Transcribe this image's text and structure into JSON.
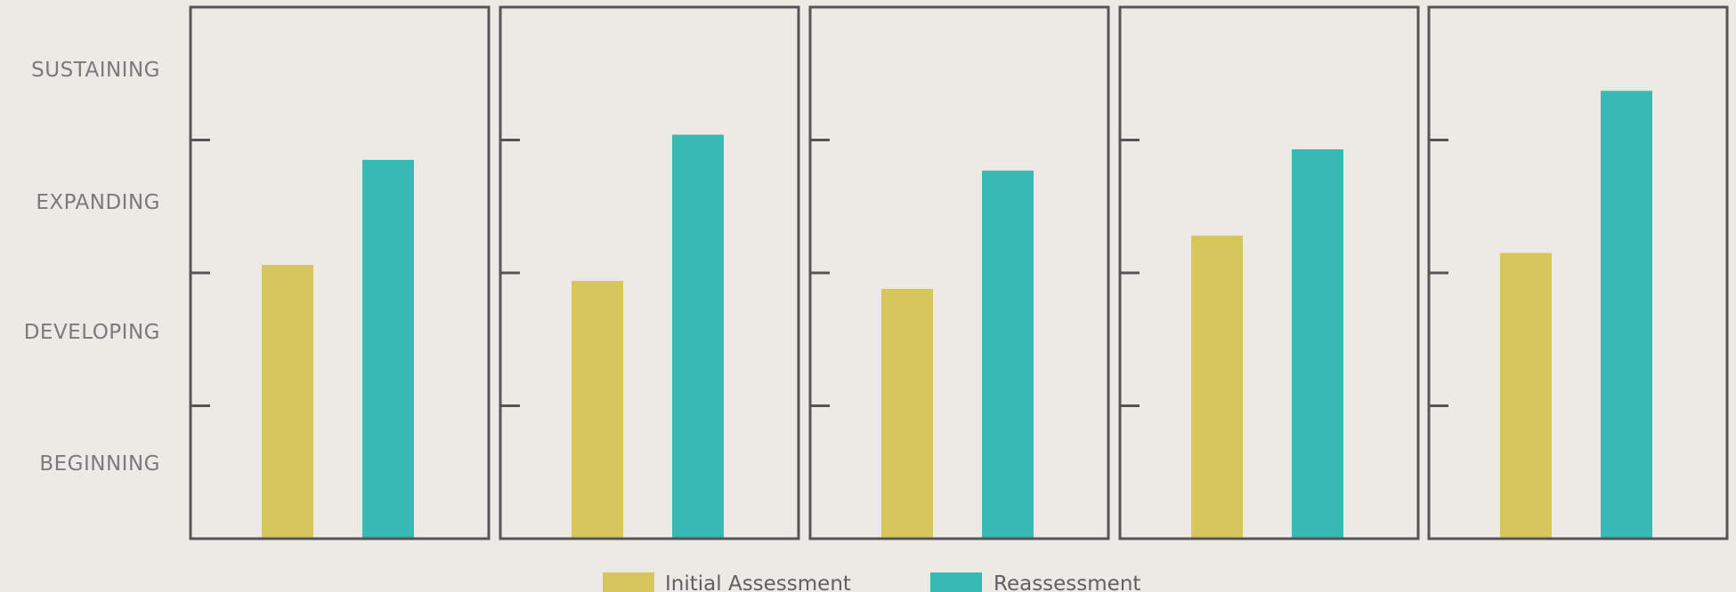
{
  "chart_data": {
    "type": "bar",
    "levels": [
      "SUSTAINING",
      "EXPANDING",
      "DEVELOPING",
      "BEGINNING"
    ],
    "y_scale": [
      "BEGINNING",
      "DEVELOPING",
      "EXPANDING",
      "SUSTAINING"
    ],
    "ylim": [
      0,
      4
    ],
    "grid": false,
    "legend_position": "bottom-center",
    "series": [
      {
        "name": "Initial Assessment",
        "color": "#d7c65e",
        "values": [
          2.06,
          1.94,
          1.88,
          2.28,
          2.15
        ]
      },
      {
        "name": "Reassessment",
        "color": "#37b9b4",
        "values": [
          2.85,
          3.04,
          2.77,
          2.93,
          3.37
        ]
      }
    ]
  }
}
